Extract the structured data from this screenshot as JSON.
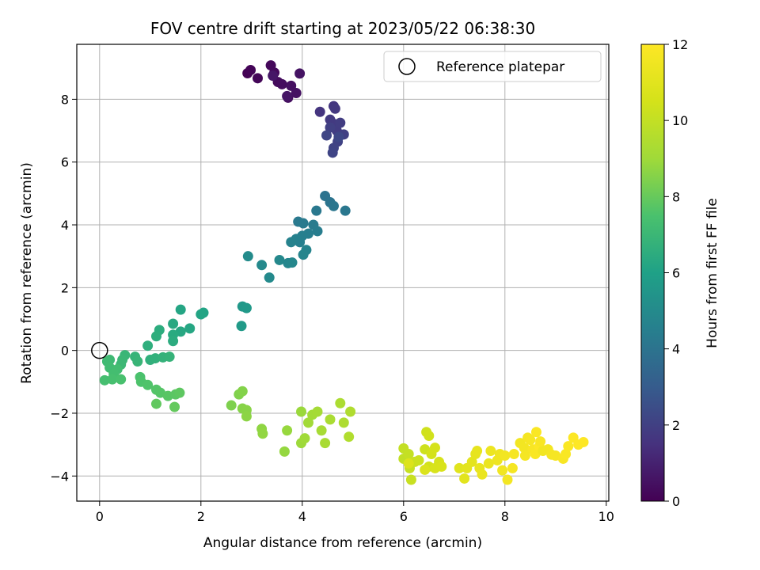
{
  "chart_data": {
    "type": "scatter",
    "title": "FOV centre drift starting at 2023/05/22 06:38:30",
    "xlabel": "Angular distance from reference (arcmin)",
    "ylabel": "Rotation from reference (arcmin)",
    "xlim": [
      -0.45,
      10.05
    ],
    "ylim": [
      -4.8,
      9.75
    ],
    "xticks": [
      0,
      2,
      4,
      6,
      8,
      10
    ],
    "yticks": [
      -4,
      -2,
      0,
      2,
      4,
      6,
      8
    ],
    "grid": true,
    "legend": {
      "placement": "upper right",
      "entries": [
        "Reference platepar"
      ]
    },
    "reference_point": {
      "x": 0,
      "y": 0,
      "name": "Reference platepar"
    },
    "colorbar": {
      "label": "Hours from first FF file",
      "range": [
        0,
        12
      ],
      "ticks": [
        0,
        2,
        4,
        6,
        8,
        10,
        12
      ],
      "colormap": "viridis"
    },
    "points": [
      [
        2.92,
        8.83,
        0.05
      ],
      [
        2.98,
        8.93,
        0.1
      ],
      [
        3.12,
        8.67,
        0.15
      ],
      [
        3.38,
        9.08,
        0.2
      ],
      [
        3.45,
        8.85,
        0.25
      ],
      [
        3.52,
        8.55,
        0.3
      ],
      [
        3.6,
        8.48,
        0.35
      ],
      [
        3.72,
        8.05,
        0.4
      ],
      [
        3.78,
        8.43,
        0.45
      ],
      [
        3.88,
        8.2,
        0.5
      ],
      [
        3.95,
        8.82,
        0.55
      ],
      [
        3.7,
        8.1,
        0.6
      ],
      [
        3.42,
        8.75,
        0.65
      ],
      [
        4.35,
        7.6,
        1.6
      ],
      [
        4.62,
        7.78,
        1.65
      ],
      [
        4.65,
        7.7,
        1.7
      ],
      [
        4.55,
        7.35,
        1.75
      ],
      [
        4.62,
        7.22,
        1.8
      ],
      [
        4.68,
        7.0,
        1.85
      ],
      [
        4.75,
        7.25,
        1.9
      ],
      [
        4.82,
        6.88,
        1.95
      ],
      [
        4.55,
        7.1,
        2.0
      ],
      [
        4.7,
        6.65,
        2.05
      ],
      [
        4.62,
        6.45,
        2.1
      ],
      [
        4.6,
        6.3,
        2.15
      ],
      [
        4.48,
        6.85,
        2.2
      ],
      [
        4.72,
        6.8,
        2.25
      ],
      [
        4.45,
        4.92,
        4.0
      ],
      [
        4.55,
        4.72,
        4.05
      ],
      [
        4.62,
        4.6,
        4.1
      ],
      [
        4.85,
        4.45,
        4.15
      ],
      [
        4.28,
        4.45,
        4.2
      ],
      [
        3.92,
        4.1,
        4.25
      ],
      [
        4.02,
        4.05,
        4.3
      ],
      [
        4.22,
        4.0,
        4.35
      ],
      [
        4.3,
        3.8,
        4.4
      ],
      [
        4.12,
        3.72,
        4.45
      ],
      [
        4.0,
        3.65,
        4.5
      ],
      [
        3.95,
        3.45,
        4.55
      ],
      [
        3.88,
        3.55,
        4.6
      ],
      [
        3.78,
        3.45,
        4.65
      ],
      [
        4.08,
        3.2,
        4.7
      ],
      [
        4.02,
        3.05,
        4.75
      ],
      [
        3.72,
        2.78,
        4.8
      ],
      [
        3.8,
        2.8,
        4.85
      ],
      [
        3.55,
        2.88,
        4.9
      ],
      [
        3.2,
        2.72,
        4.95
      ],
      [
        3.35,
        2.32,
        5.0
      ],
      [
        2.93,
        3.0,
        5.05
      ],
      [
        2.82,
        1.4,
        5.6
      ],
      [
        2.9,
        1.35,
        5.65
      ],
      [
        2.8,
        0.78,
        5.7
      ],
      [
        2.05,
        1.2,
        6.1
      ],
      [
        2.0,
        1.15,
        6.15
      ],
      [
        1.6,
        1.3,
        6.2
      ],
      [
        1.78,
        0.7,
        6.25
      ],
      [
        1.6,
        0.6,
        6.3
      ],
      [
        1.45,
        0.85,
        6.35
      ],
      [
        1.45,
        0.5,
        6.4
      ],
      [
        1.45,
        0.3,
        6.45
      ],
      [
        1.18,
        0.65,
        6.5
      ],
      [
        1.12,
        0.45,
        6.55
      ],
      [
        0.95,
        0.15,
        6.6
      ],
      [
        1.0,
        -0.3,
        6.65
      ],
      [
        1.1,
        -0.25,
        6.7
      ],
      [
        1.25,
        -0.22,
        6.75
      ],
      [
        1.38,
        -0.2,
        6.8
      ],
      [
        0.7,
        -0.2,
        6.85
      ],
      [
        0.75,
        -0.35,
        6.9
      ],
      [
        0.5,
        -0.15,
        6.95
      ],
      [
        0.45,
        -0.3,
        7.0
      ],
      [
        0.42,
        -0.45,
        7.05
      ],
      [
        0.2,
        -0.3,
        7.1
      ],
      [
        0.15,
        -0.35,
        7.15
      ],
      [
        0.2,
        -0.55,
        7.2
      ],
      [
        0.35,
        -0.6,
        7.25
      ],
      [
        0.28,
        -0.75,
        7.3
      ],
      [
        0.1,
        -0.95,
        7.35
      ],
      [
        0.25,
        -0.92,
        7.4
      ],
      [
        0.42,
        -0.92,
        7.45
      ],
      [
        0.8,
        -0.85,
        7.5
      ],
      [
        0.82,
        -1.0,
        7.55
      ],
      [
        0.95,
        -1.1,
        7.6
      ],
      [
        1.12,
        -1.25,
        7.65
      ],
      [
        1.2,
        -1.35,
        7.7
      ],
      [
        1.35,
        -1.45,
        7.75
      ],
      [
        1.5,
        -1.4,
        7.8
      ],
      [
        1.58,
        -1.35,
        7.85
      ],
      [
        1.12,
        -1.7,
        7.9
      ],
      [
        1.48,
        -1.8,
        7.95
      ],
      [
        2.6,
        -1.75,
        8.4
      ],
      [
        2.75,
        -1.4,
        8.45
      ],
      [
        2.82,
        -1.3,
        8.5
      ],
      [
        2.82,
        -1.85,
        8.55
      ],
      [
        2.9,
        -1.9,
        8.6
      ],
      [
        2.9,
        -2.1,
        8.65
      ],
      [
        3.2,
        -2.5,
        8.7
      ],
      [
        3.22,
        -2.65,
        8.75
      ],
      [
        3.65,
        -3.22,
        8.8
      ],
      [
        3.7,
        -2.55,
        8.85
      ],
      [
        3.98,
        -1.95,
        8.9
      ],
      [
        3.98,
        -2.95,
        8.95
      ],
      [
        4.05,
        -2.8,
        9.0
      ],
      [
        4.12,
        -2.3,
        9.05
      ],
      [
        4.2,
        -2.05,
        9.1
      ],
      [
        4.3,
        -1.95,
        9.15
      ],
      [
        4.38,
        -2.55,
        9.2
      ],
      [
        4.45,
        -2.95,
        9.25
      ],
      [
        4.55,
        -2.2,
        9.3
      ],
      [
        4.75,
        -1.68,
        9.35
      ],
      [
        4.82,
        -2.3,
        9.4
      ],
      [
        4.95,
        -1.95,
        9.45
      ],
      [
        4.92,
        -2.75,
        9.5
      ],
      [
        6.0,
        -3.45,
        9.95
      ],
      [
        6.0,
        -3.12,
        10.0
      ],
      [
        6.1,
        -3.3,
        10.05
      ],
      [
        6.12,
        -3.75,
        10.1
      ],
      [
        6.15,
        -4.12,
        10.15
      ],
      [
        6.22,
        -3.55,
        10.2
      ],
      [
        6.3,
        -3.5,
        10.25
      ],
      [
        6.42,
        -3.15,
        10.3
      ],
      [
        6.45,
        -2.6,
        10.35
      ],
      [
        6.5,
        -2.72,
        10.4
      ],
      [
        6.5,
        -3.7,
        10.45
      ],
      [
        6.55,
        -3.3,
        10.5
      ],
      [
        6.62,
        -3.1,
        10.55
      ],
      [
        6.7,
        -3.55,
        10.6
      ],
      [
        6.62,
        -3.75,
        10.65
      ],
      [
        6.75,
        -3.7,
        10.7
      ],
      [
        6.42,
        -3.8,
        10.75
      ],
      [
        6.1,
        -3.6,
        10.8
      ],
      [
        7.1,
        -3.75,
        10.95
      ],
      [
        7.2,
        -4.08,
        11.0
      ],
      [
        7.25,
        -3.75,
        11.05
      ],
      [
        7.35,
        -3.55,
        11.1
      ],
      [
        7.42,
        -3.3,
        11.15
      ],
      [
        7.45,
        -3.2,
        11.2
      ],
      [
        7.5,
        -3.75,
        11.25
      ],
      [
        7.55,
        -3.95,
        11.3
      ],
      [
        7.68,
        -3.6,
        11.35
      ],
      [
        7.72,
        -3.2,
        11.4
      ],
      [
        7.85,
        -3.5,
        11.45
      ],
      [
        7.9,
        -3.3,
        11.5
      ],
      [
        7.95,
        -3.82,
        11.55
      ],
      [
        8.0,
        -3.35,
        11.6
      ],
      [
        8.05,
        -4.12,
        11.65
      ],
      [
        8.15,
        -3.75,
        11.7
      ],
      [
        8.18,
        -3.3,
        11.75
      ],
      [
        8.3,
        -2.95,
        11.6
      ],
      [
        8.38,
        -3.1,
        11.65
      ],
      [
        8.45,
        -2.78,
        11.7
      ],
      [
        8.5,
        -2.85,
        11.75
      ],
      [
        8.55,
        -3.15,
        11.8
      ],
      [
        8.6,
        -3.3,
        11.85
      ],
      [
        8.62,
        -2.6,
        11.9
      ],
      [
        8.68,
        -3.05,
        11.95
      ],
      [
        8.75,
        -3.2,
        11.6
      ],
      [
        8.85,
        -3.15,
        11.65
      ],
      [
        8.92,
        -3.32,
        11.7
      ],
      [
        9.0,
        -3.35,
        11.75
      ],
      [
        9.15,
        -3.45,
        11.8
      ],
      [
        9.2,
        -3.3,
        11.85
      ],
      [
        9.25,
        -3.05,
        11.9
      ],
      [
        9.35,
        -2.78,
        11.95
      ],
      [
        9.45,
        -3.0,
        12.0
      ],
      [
        9.55,
        -2.92,
        12.05
      ],
      [
        8.4,
        -3.35,
        11.7
      ],
      [
        8.7,
        -2.9,
        11.8
      ]
    ]
  }
}
